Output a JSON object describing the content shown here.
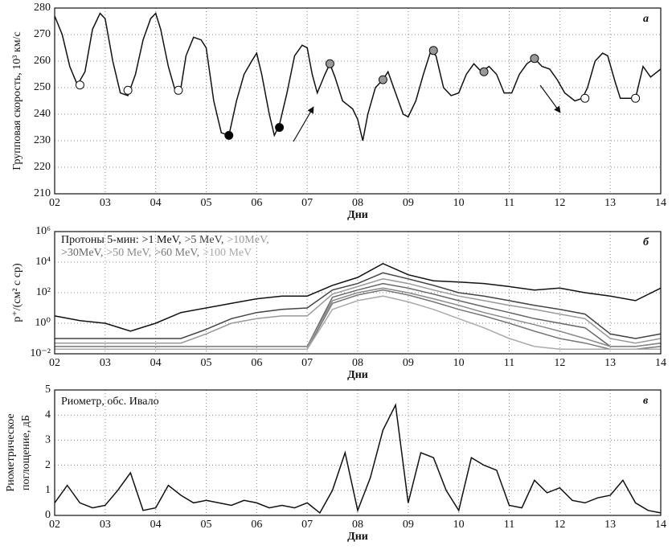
{
  "chart_data": [
    {
      "type": "line",
      "panel_label": "а",
      "ylabel": "Групповая скорость, 10³ км/с",
      "xlabel": "Дни",
      "xlim": [
        2,
        14
      ],
      "xticks": [
        {
          "value": 2,
          "label": "02"
        },
        {
          "value": 3,
          "label": "03"
        },
        {
          "value": 4,
          "label": "04"
        },
        {
          "value": 5,
          "label": "05"
        },
        {
          "value": 6,
          "label": "06"
        },
        {
          "value": 7,
          "label": "07"
        },
        {
          "value": 8,
          "label": "08"
        },
        {
          "value": 9,
          "label": "09"
        },
        10,
        11,
        12,
        13,
        14
      ],
      "ylim": [
        210,
        280
      ],
      "yticks": [
        210,
        220,
        230,
        240,
        250,
        260,
        270,
        280
      ],
      "grid": true,
      "series": [
        {
          "style": "line",
          "color": "#111111",
          "x": [
            2.0,
            2.15,
            2.3,
            2.45,
            2.6,
            2.75,
            2.9,
            3.0,
            3.15,
            3.3,
            3.45,
            3.6,
            3.75,
            3.9,
            4.0,
            4.1,
            4.25,
            4.4,
            4.5,
            4.6,
            4.75,
            4.9,
            5.0,
            5.15,
            5.3,
            5.45,
            5.6,
            5.75,
            5.9,
            6.0,
            6.1,
            6.25,
            6.35,
            6.45,
            6.6,
            6.75,
            6.9,
            7.0,
            7.1,
            7.2,
            7.35,
            7.45,
            7.55,
            7.7,
            7.9,
            8.0,
            8.1,
            8.2,
            8.35,
            8.5,
            8.6,
            8.75,
            8.9,
            9.0,
            9.15,
            9.3,
            9.45,
            9.55,
            9.7,
            9.85,
            10.0,
            10.15,
            10.3,
            10.45,
            10.6,
            10.75,
            10.9,
            11.05,
            11.2,
            11.35,
            11.5,
            11.65,
            11.8,
            11.95,
            12.1,
            12.3,
            12.45,
            12.55,
            12.7,
            12.85,
            12.95,
            13.1,
            13.2,
            13.35,
            13.5,
            13.65,
            13.8,
            14.0
          ],
          "values": [
            277,
            270,
            258,
            251,
            256,
            272,
            278,
            276,
            260,
            248,
            247,
            255,
            268,
            276,
            278,
            272,
            258,
            248,
            250,
            262,
            269,
            268,
            265,
            245,
            233,
            232,
            245,
            255,
            260,
            263,
            255,
            240,
            232,
            236,
            248,
            262,
            266,
            265,
            255,
            248,
            255,
            259,
            254,
            245,
            242,
            238,
            230,
            240,
            250,
            253,
            256,
            248,
            240,
            239,
            245,
            255,
            264,
            262,
            250,
            247,
            248,
            255,
            259,
            256,
            258,
            255,
            248,
            248,
            255,
            259,
            261,
            258,
            257,
            253,
            248,
            245,
            246,
            250,
            260,
            263,
            262,
            252,
            246,
            246,
            246,
            258,
            254,
            257
          ]
        },
        {
          "style": "points",
          "color": "#ffffff",
          "x": [
            2.5,
            3.45,
            4.45,
            12.5,
            13.5
          ],
          "values": [
            251,
            249,
            249,
            246,
            246
          ]
        },
        {
          "style": "points",
          "color": "#000000",
          "x": [
            5.45,
            6.45
          ],
          "values": [
            232,
            235
          ]
        },
        {
          "style": "points",
          "color": "#999999",
          "x": [
            7.45,
            8.5,
            9.5,
            10.5,
            11.5
          ],
          "values": [
            259,
            253,
            264,
            256,
            261
          ]
        }
      ]
    },
    {
      "type": "line",
      "panel_label": "б",
      "ylabel": "p⁺/(см² с ср)",
      "xlabel": "Дни",
      "legend_title": "Протоны 5-мин:",
      "xlim": [
        2,
        14
      ],
      "xticks": [
        {
          "value": 2,
          "label": "02"
        },
        {
          "value": 3,
          "label": "03"
        },
        {
          "value": 4,
          "label": "04"
        },
        {
          "value": 5,
          "label": "05"
        },
        {
          "value": 6,
          "label": "06"
        },
        {
          "value": 7,
          "label": "07"
        },
        {
          "value": 8,
          "label": "08"
        },
        {
          "value": 9,
          "label": "09"
        },
        10,
        11,
        12,
        13,
        14
      ],
      "ylog": true,
      "ylim": [
        0.01,
        1000000
      ],
      "yticks": [
        {
          "value": 0.01,
          "label": "10⁻²"
        },
        {
          "value": 1,
          "label": "10⁰"
        },
        {
          "value": 100,
          "label": "10²"
        },
        {
          "value": 10000,
          "label": "10⁴"
        },
        {
          "value": 1000000,
          "label": "10⁶"
        }
      ],
      "grid": true,
      "x": [
        2,
        2.5,
        3,
        3.5,
        4,
        4.5,
        5,
        5.5,
        6,
        6.5,
        7,
        7.5,
        8,
        8.5,
        9,
        9.5,
        10,
        10.5,
        11,
        11.5,
        12,
        12.5,
        13,
        13.5,
        14
      ],
      "series": [
        {
          "name": ">1 MeV,",
          "color": "#111111",
          "values": [
            3,
            1.5,
            1,
            0.3,
            1,
            5,
            10,
            20,
            40,
            60,
            60,
            300,
            1000,
            8000,
            1500,
            600,
            500,
            400,
            250,
            150,
            200,
            100,
            60,
            30,
            200
          ]
        },
        {
          "name": ">5 MeV,",
          "color": "#444444",
          "values": [
            0.1,
            0.1,
            0.1,
            0.1,
            0.1,
            0.1,
            0.4,
            2,
            5,
            8,
            10,
            150,
            400,
            2000,
            800,
            300,
            100,
            60,
            30,
            15,
            8,
            4,
            0.2,
            0.1,
            0.2
          ]
        },
        {
          "name": ">10MeV,",
          "color": "#999999",
          "values": [
            0.05,
            0.05,
            0.05,
            0.05,
            0.05,
            0.05,
            0.2,
            1,
            2,
            3,
            3,
            80,
            250,
            800,
            400,
            150,
            60,
            30,
            15,
            8,
            4,
            2,
            0.1,
            0.05,
            0.1
          ]
        },
        {
          "name": ">30MeV,",
          "color": "#666666",
          "values": [
            0.03,
            0.03,
            0.03,
            0.03,
            0.03,
            0.03,
            0.03,
            0.03,
            0.03,
            0.03,
            0.03,
            50,
            150,
            400,
            200,
            80,
            30,
            12,
            5,
            2,
            1,
            0.5,
            0.03,
            0.03,
            0.05
          ]
        },
        {
          "name": ">50 MeV,",
          "color": "#8a8a8a",
          "values": [
            0.03,
            0.03,
            0.03,
            0.03,
            0.03,
            0.03,
            0.03,
            0.03,
            0.03,
            0.03,
            0.03,
            30,
            100,
            200,
            100,
            40,
            15,
            5,
            2,
            0.8,
            0.3,
            0.1,
            0.03,
            0.03,
            0.05
          ]
        },
        {
          "name": ">60 MeV,",
          "color": "#777777",
          "values": [
            0.02,
            0.02,
            0.02,
            0.02,
            0.02,
            0.02,
            0.02,
            0.02,
            0.02,
            0.02,
            0.02,
            20,
            70,
            150,
            70,
            25,
            8,
            3,
            1,
            0.3,
            0.1,
            0.05,
            0.02,
            0.02,
            0.03
          ]
        },
        {
          "name": ">100 MeV",
          "color": "#aaaaaa",
          "values": [
            0.02,
            0.02,
            0.02,
            0.02,
            0.02,
            0.02,
            0.02,
            0.02,
            0.02,
            0.02,
            0.02,
            8,
            30,
            60,
            25,
            8,
            2,
            0.5,
            0.1,
            0.03,
            0.02,
            0.02,
            0.02,
            0.02,
            0.02
          ]
        }
      ]
    },
    {
      "type": "line",
      "panel_label": "в",
      "ylabel": [
        "Риометрическое",
        "поглощение, дБ"
      ],
      "xlabel": "Дни",
      "annotation": "Риометр, обс. Ивало",
      "xlim": [
        2,
        14
      ],
      "xticks": [
        {
          "value": 2,
          "label": "02"
        },
        {
          "value": 3,
          "label": "03"
        },
        {
          "value": 4,
          "label": "04"
        },
        {
          "value": 5,
          "label": "05"
        },
        {
          "value": 6,
          "label": "06"
        },
        {
          "value": 7,
          "label": "07"
        },
        {
          "value": 8,
          "label": "08"
        },
        {
          "value": 9,
          "label": "09"
        },
        10,
        11,
        12,
        13,
        14
      ],
      "ylim": [
        0,
        5
      ],
      "yticks": [
        0,
        1,
        2,
        3,
        4,
        5
      ],
      "grid": true,
      "x": [
        2,
        2.25,
        2.5,
        2.75,
        3,
        3.25,
        3.5,
        3.75,
        4,
        4.25,
        4.5,
        4.75,
        5,
        5.25,
        5.5,
        5.75,
        6,
        6.25,
        6.5,
        6.75,
        7,
        7.25,
        7.5,
        7.75,
        8,
        8.25,
        8.5,
        8.75,
        9,
        9.25,
        9.5,
        9.75,
        10,
        10.25,
        10.5,
        10.75,
        11,
        11.25,
        11.5,
        11.75,
        12,
        12.25,
        12.5,
        12.75,
        13,
        13.25,
        13.5,
        13.75,
        14
      ],
      "series": [
        {
          "color": "#111111",
          "values": [
            0.5,
            1.2,
            0.5,
            0.3,
            0.4,
            1,
            1.7,
            0.2,
            0.3,
            1.2,
            0.8,
            0.5,
            0.6,
            0.5,
            0.4,
            0.6,
            0.5,
            0.3,
            0.4,
            0.3,
            0.5,
            0.1,
            1,
            2.5,
            0.2,
            1.5,
            3.4,
            4.4,
            0.5,
            2.5,
            2.3,
            1,
            0.2,
            2.3,
            2,
            1.8,
            0.4,
            0.3,
            1.4,
            0.9,
            1.1,
            0.6,
            0.5,
            0.7,
            0.8,
            1.4,
            0.5,
            0.2,
            0.1
          ]
        }
      ]
    }
  ]
}
